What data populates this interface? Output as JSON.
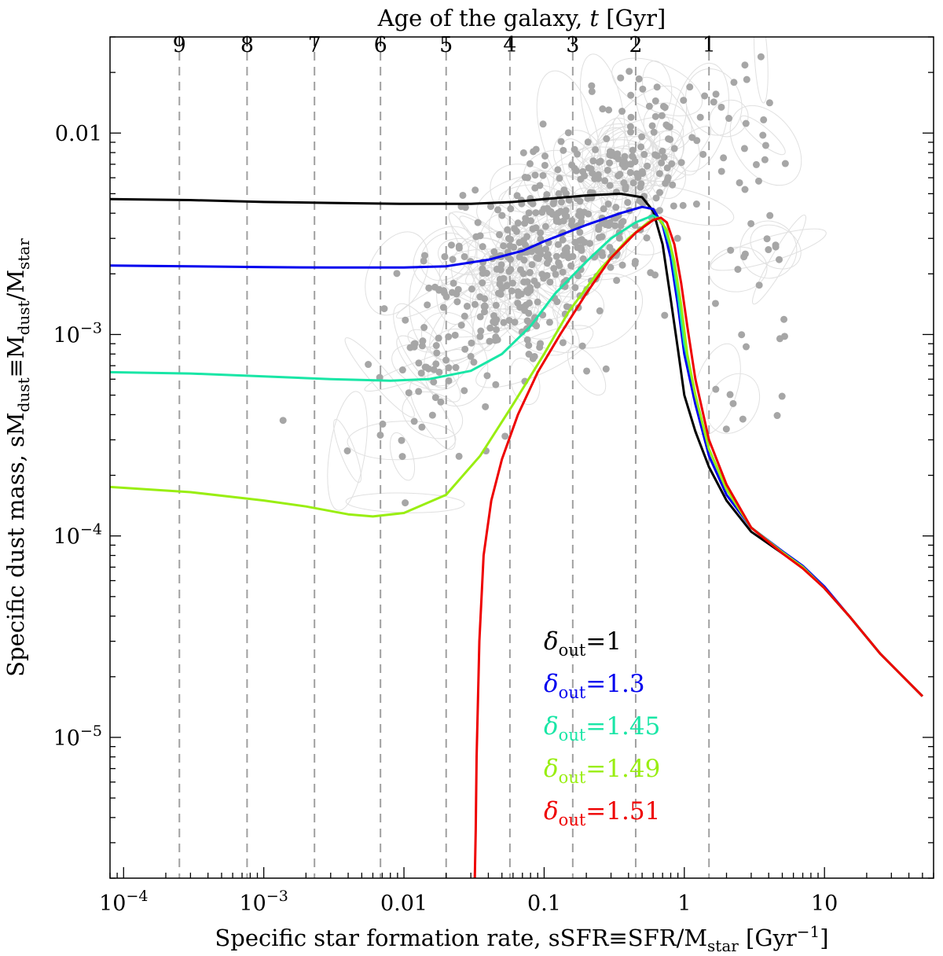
{
  "chart_data": {
    "type": "line",
    "xlabel": "Specific star formation rate, sSFR≡SFR/M",
    "xlabel_sub": "star",
    "xlabel_unit": " [Gyr",
    "xlabel_unit_sup": "−1",
    "xlabel_unit_end": "]",
    "ylabel": "Specific dust mass, sM",
    "ylabel_sub1": "dust",
    "ylabel_mid": "≡M",
    "ylabel_sub2": "dust",
    "ylabel_slash": "/M",
    "ylabel_sub3": "star",
    "top_xlabel": "Age of the galaxy, ",
    "top_xlabel_var": "t",
    "top_xlabel_unit": " [Gyr]",
    "x_scale": "log",
    "y_scale": "log",
    "xlim": [
      8e-05,
      60
    ],
    "ylim": [
      2e-06,
      0.03
    ],
    "x_ticks": [
      {
        "value": 0.0001,
        "base": "10",
        "exp": "−4"
      },
      {
        "value": 0.001,
        "base": "10",
        "exp": "−3"
      },
      {
        "value": 0.01,
        "base": "0.01",
        "exp": ""
      },
      {
        "value": 0.1,
        "base": "0.1",
        "exp": ""
      },
      {
        "value": 1,
        "base": "1",
        "exp": ""
      },
      {
        "value": 10,
        "base": "10",
        "exp": ""
      }
    ],
    "y_ticks": [
      {
        "value": 0.01,
        "base": "0.01",
        "exp": ""
      },
      {
        "value": 0.001,
        "base": "10",
        "exp": "−3"
      },
      {
        "value": 0.0001,
        "base": "10",
        "exp": "−4"
      },
      {
        "value": 1e-05,
        "base": "10",
        "exp": "−5"
      }
    ],
    "age_ticks": [
      {
        "label": "9",
        "ssfr": 0.00025
      },
      {
        "label": "8",
        "ssfr": 0.00076
      },
      {
        "label": "7",
        "ssfr": 0.0023
      },
      {
        "label": "6",
        "ssfr": 0.0068
      },
      {
        "label": "5",
        "ssfr": 0.02
      },
      {
        "label": "4",
        "ssfr": 0.057
      },
      {
        "label": "3",
        "ssfr": 0.16
      },
      {
        "label": "2",
        "ssfr": 0.45
      },
      {
        "label": "1",
        "ssfr": 1.5
      }
    ],
    "series": [
      {
        "name": "1",
        "color": "#000000",
        "points": [
          [
            8e-05,
            0.0047
          ],
          [
            0.0003,
            0.00465
          ],
          [
            0.001,
            0.00455
          ],
          [
            0.003,
            0.0045
          ],
          [
            0.01,
            0.00445
          ],
          [
            0.03,
            0.00445
          ],
          [
            0.06,
            0.00455
          ],
          [
            0.1,
            0.0047
          ],
          [
            0.2,
            0.0049
          ],
          [
            0.35,
            0.005
          ],
          [
            0.5,
            0.0048
          ],
          [
            0.6,
            0.0041
          ],
          [
            0.7,
            0.0028
          ],
          [
            0.8,
            0.0015
          ],
          [
            0.9,
            0.00085
          ],
          [
            1.0,
            0.0005
          ],
          [
            1.2,
            0.00033
          ],
          [
            1.5,
            0.00022
          ],
          [
            2,
            0.00015
          ],
          [
            3,
            0.000105
          ],
          [
            5,
            8.2e-05
          ],
          [
            7,
            7e-05
          ],
          [
            10,
            5.5e-05
          ],
          [
            15,
            4e-05
          ],
          [
            25,
            2.6e-05
          ],
          [
            50,
            1.6e-05
          ]
        ]
      },
      {
        "name": "1.3",
        "color": "#0000ee",
        "points": [
          [
            8e-05,
            0.0022
          ],
          [
            0.0003,
            0.00218
          ],
          [
            0.001,
            0.00216
          ],
          [
            0.003,
            0.00215
          ],
          [
            0.01,
            0.00215
          ],
          [
            0.02,
            0.00218
          ],
          [
            0.04,
            0.00235
          ],
          [
            0.07,
            0.0026
          ],
          [
            0.1,
            0.0029
          ],
          [
            0.2,
            0.0035
          ],
          [
            0.35,
            0.004
          ],
          [
            0.5,
            0.0043
          ],
          [
            0.6,
            0.0042
          ],
          [
            0.7,
            0.0035
          ],
          [
            0.8,
            0.0024
          ],
          [
            0.9,
            0.0014
          ],
          [
            1.0,
            0.0008
          ],
          [
            1.2,
            0.00045
          ],
          [
            1.5,
            0.00025
          ],
          [
            2,
            0.00016
          ],
          [
            3,
            0.00011
          ],
          [
            5,
            8.4e-05
          ],
          [
            7,
            7.1e-05
          ],
          [
            10,
            5.6e-05
          ],
          [
            15,
            4e-05
          ],
          [
            25,
            2.6e-05
          ],
          [
            50,
            1.6e-05
          ]
        ]
      },
      {
        "name": "1.45",
        "color": "#19e6a6",
        "points": [
          [
            8e-05,
            0.00065
          ],
          [
            0.0003,
            0.00064
          ],
          [
            0.001,
            0.00062
          ],
          [
            0.003,
            0.0006
          ],
          [
            0.008,
            0.00059
          ],
          [
            0.015,
            0.0006
          ],
          [
            0.03,
            0.00066
          ],
          [
            0.05,
            0.0008
          ],
          [
            0.08,
            0.0011
          ],
          [
            0.12,
            0.0016
          ],
          [
            0.2,
            0.0023
          ],
          [
            0.3,
            0.003
          ],
          [
            0.45,
            0.0036
          ],
          [
            0.6,
            0.0039
          ],
          [
            0.7,
            0.0036
          ],
          [
            0.8,
            0.0027
          ],
          [
            0.9,
            0.0016
          ],
          [
            1.0,
            0.0009
          ],
          [
            1.2,
            0.0005
          ],
          [
            1.5,
            0.00027
          ],
          [
            2,
            0.00017
          ],
          [
            3,
            0.00011
          ],
          [
            5,
            8.3e-05
          ],
          [
            7,
            7e-05
          ],
          [
            10,
            5.5e-05
          ],
          [
            15,
            4e-05
          ],
          [
            25,
            2.6e-05
          ],
          [
            50,
            1.6e-05
          ]
        ]
      },
      {
        "name": "1.49",
        "color": "#99ee11",
        "points": [
          [
            8e-05,
            0.000175
          ],
          [
            0.0003,
            0.000165
          ],
          [
            0.001,
            0.00015
          ],
          [
            0.002,
            0.00014
          ],
          [
            0.004,
            0.000128
          ],
          [
            0.006,
            0.000125
          ],
          [
            0.01,
            0.00013
          ],
          [
            0.02,
            0.00016
          ],
          [
            0.035,
            0.00025
          ],
          [
            0.06,
            0.00045
          ],
          [
            0.1,
            0.0008
          ],
          [
            0.15,
            0.0013
          ],
          [
            0.25,
            0.0021
          ],
          [
            0.4,
            0.003
          ],
          [
            0.55,
            0.0036
          ],
          [
            0.65,
            0.0038
          ],
          [
            0.75,
            0.0033
          ],
          [
            0.85,
            0.0023
          ],
          [
            0.95,
            0.0014
          ],
          [
            1.05,
            0.0008
          ],
          [
            1.2,
            0.0005
          ],
          [
            1.5,
            0.00027
          ],
          [
            2,
            0.00017
          ],
          [
            3,
            0.00011
          ],
          [
            5,
            8.3e-05
          ],
          [
            7,
            7e-05
          ],
          [
            10,
            5.5e-05
          ],
          [
            15,
            4e-05
          ],
          [
            25,
            2.6e-05
          ],
          [
            50,
            1.6e-05
          ]
        ]
      },
      {
        "name": "1.51",
        "color": "#ee0000",
        "points": [
          [
            0.032,
            2e-06
          ],
          [
            0.0325,
            3.5e-06
          ],
          [
            0.033,
            8e-06
          ],
          [
            0.0345,
            3e-05
          ],
          [
            0.037,
            8e-05
          ],
          [
            0.042,
            0.00015
          ],
          [
            0.05,
            0.00024
          ],
          [
            0.065,
            0.0004
          ],
          [
            0.09,
            0.00065
          ],
          [
            0.13,
            0.001
          ],
          [
            0.2,
            0.0016
          ],
          [
            0.3,
            0.0024
          ],
          [
            0.45,
            0.0032
          ],
          [
            0.6,
            0.0037
          ],
          [
            0.68,
            0.0038
          ],
          [
            0.75,
            0.0036
          ],
          [
            0.85,
            0.0028
          ],
          [
            0.95,
            0.0018
          ],
          [
            1.05,
            0.0011
          ],
          [
            1.2,
            0.0006
          ],
          [
            1.5,
            0.0003
          ],
          [
            2,
            0.00018
          ],
          [
            3,
            0.00011
          ],
          [
            5,
            8.2e-05
          ],
          [
            7,
            6.9e-05
          ],
          [
            10,
            5.5e-05
          ],
          [
            15,
            4e-05
          ],
          [
            25,
            2.6e-05
          ],
          [
            50,
            1.6e-05
          ]
        ]
      }
    ],
    "legend_prefix": "δ",
    "legend_sub": "out",
    "legend_eq": "=",
    "legend_placement": "lower-right",
    "grid": false
  },
  "colors": {
    "points": "#a6a6a6",
    "ellipses": "#e0e0e0",
    "guides": "#a0a0a0"
  }
}
